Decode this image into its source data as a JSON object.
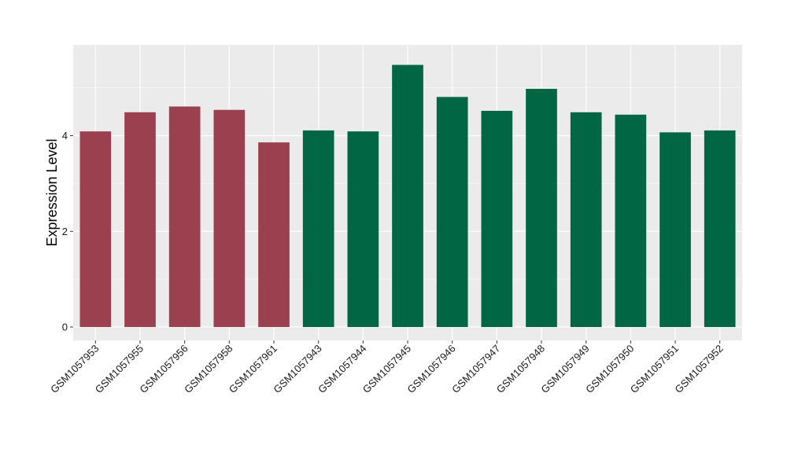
{
  "chart_data": {
    "type": "bar",
    "title": "",
    "xlabel": "",
    "ylabel": "Expression Level",
    "ylim": [
      -0.28,
      5.9
    ],
    "yticks": [
      0,
      2,
      4
    ],
    "grid": true,
    "legend": "none",
    "categories": [
      "GSM1057953",
      "GSM1057955",
      "GSM1057956",
      "GSM1057958",
      "GSM1057961",
      "GSM1057943",
      "GSM1057944",
      "GSM1057945",
      "GSM1057946",
      "GSM1057947",
      "GSM1057948",
      "GSM1057949",
      "GSM1057950",
      "GSM1057951",
      "GSM1057952"
    ],
    "values": [
      4.09,
      4.49,
      4.61,
      4.54,
      3.86,
      4.11,
      4.09,
      5.48,
      4.81,
      4.52,
      4.98,
      4.49,
      4.44,
      4.07,
      4.11
    ],
    "bar_colors": [
      "#9b404f",
      "#9b404f",
      "#9b404f",
      "#9b404f",
      "#9b404f",
      "#006644",
      "#006644",
      "#006644",
      "#006644",
      "#006644",
      "#006644",
      "#006644",
      "#006644",
      "#006644",
      "#006644"
    ],
    "panel_background": "#ebebeb",
    "grid_color": "#ffffff"
  }
}
